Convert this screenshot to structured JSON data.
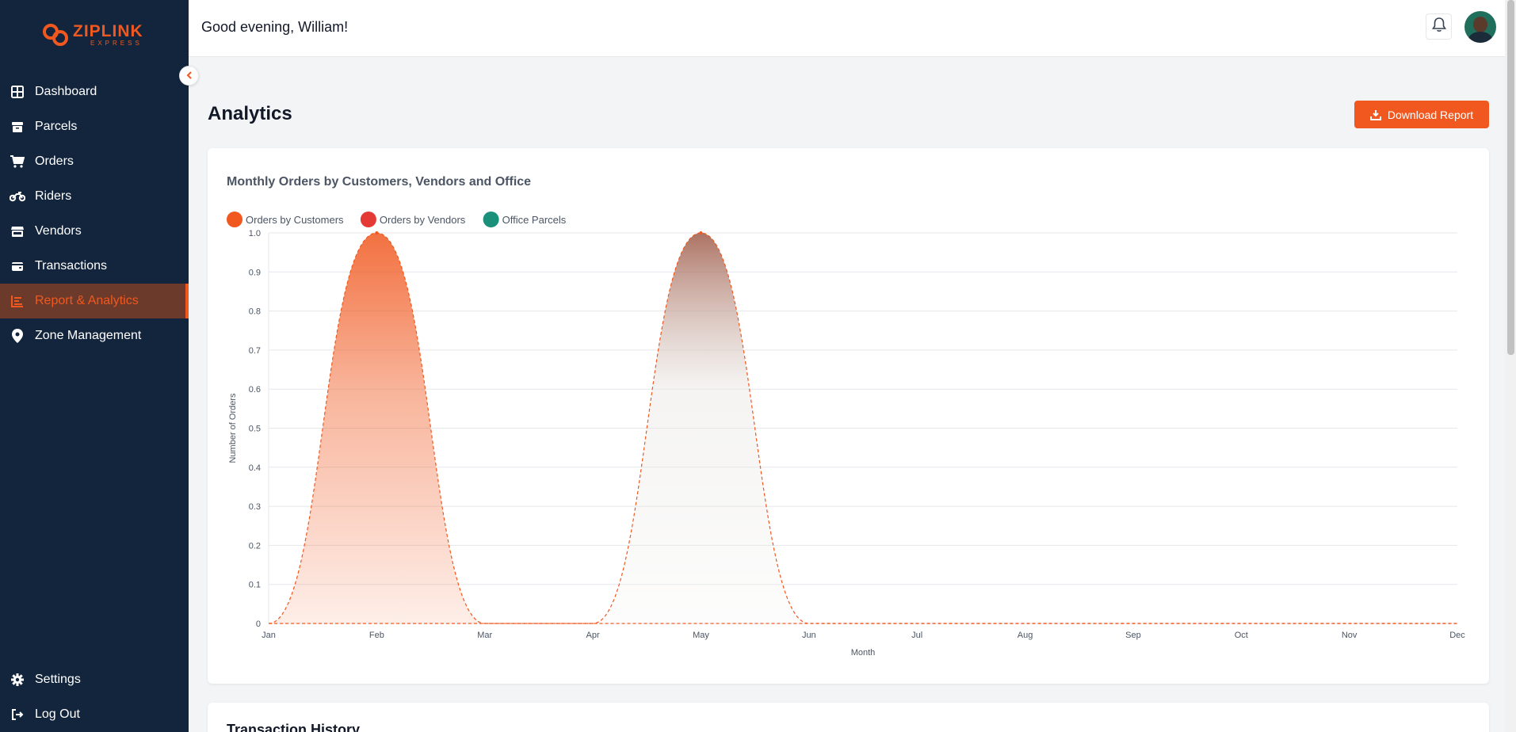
{
  "brand": {
    "name": "ZIPLINK",
    "tagline": "EXPRESS",
    "color": "#f0581f"
  },
  "sidebar": {
    "items": [
      {
        "label": "Dashboard",
        "icon": "grid-icon"
      },
      {
        "label": "Parcels",
        "icon": "box-icon"
      },
      {
        "label": "Orders",
        "icon": "cart-icon"
      },
      {
        "label": "Riders",
        "icon": "motorcycle-icon"
      },
      {
        "label": "Vendors",
        "icon": "store-icon"
      },
      {
        "label": "Transactions",
        "icon": "wallet-icon"
      },
      {
        "label": "Report & Analytics",
        "icon": "chart-icon",
        "active": true
      },
      {
        "label": "Zone Management",
        "icon": "map-pin-icon"
      }
    ],
    "bottom": [
      {
        "label": "Settings",
        "icon": "gear-icon"
      },
      {
        "label": "Log Out",
        "icon": "logout-icon"
      }
    ]
  },
  "header": {
    "greeting": "Good evening, William!"
  },
  "main": {
    "title": "Analytics",
    "download_label": "Download Report"
  },
  "chart_data": {
    "type": "area",
    "title": "Monthly Orders by Customers, Vendors and Office",
    "xlabel": "Month",
    "ylabel": "Number of Orders",
    "categories": [
      "Jan",
      "Feb",
      "Mar",
      "Apr",
      "May",
      "Jun",
      "Jul",
      "Aug",
      "Sep",
      "Oct",
      "Nov",
      "Dec"
    ],
    "y_ticks": [
      "0",
      "0.1",
      "0.2",
      "0.3",
      "0.4",
      "0.5",
      "0.6",
      "0.7",
      "0.8",
      "0.9",
      "1.0"
    ],
    "ylim": [
      0,
      1
    ],
    "grid": true,
    "legend_position": "top-left",
    "series": [
      {
        "name": "Orders by Customers",
        "color": "#f0581f",
        "values": [
          0,
          1,
          0,
          0,
          0,
          0,
          0,
          0,
          0,
          0,
          0,
          0
        ]
      },
      {
        "name": "Orders by Vendors",
        "color": "#e53935",
        "values": [
          0,
          0,
          0,
          0,
          0,
          0,
          0,
          0,
          0,
          0,
          0,
          0
        ]
      },
      {
        "name": "Office Parcels",
        "color": "#1a8f7a",
        "values": [
          0,
          0,
          0,
          0,
          1,
          0,
          0,
          0,
          0,
          0,
          0,
          0
        ]
      }
    ]
  },
  "transactions": {
    "title": "Transaction History"
  }
}
